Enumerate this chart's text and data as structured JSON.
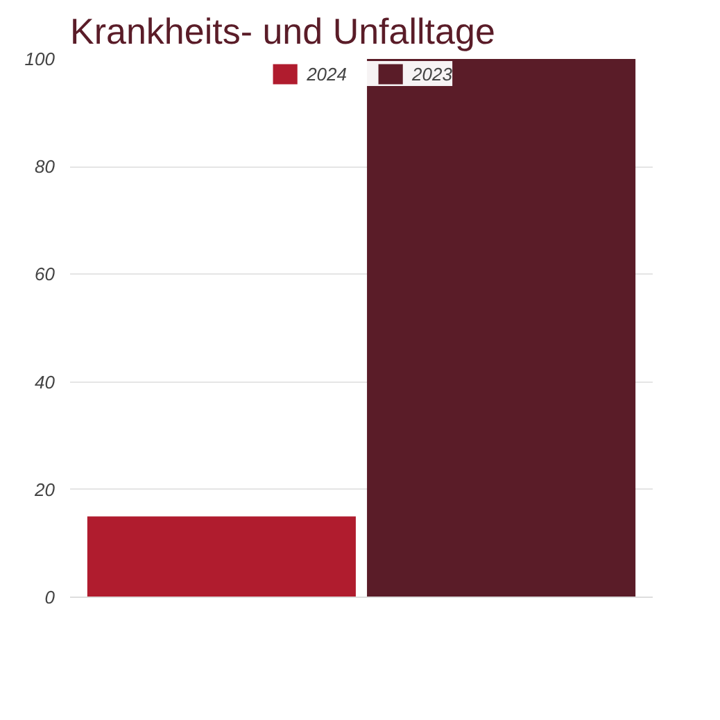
{
  "chart_data": {
    "type": "bar",
    "title": "Krankheits- und Unfalltage",
    "categories": [
      null
    ],
    "series": [
      {
        "name": "2024",
        "color": "#b01c2e",
        "values": [
          15
        ]
      },
      {
        "name": "2023",
        "color": "#5a1c28",
        "values": [
          100
        ]
      }
    ],
    "ylim": [
      0,
      100
    ],
    "yticks": [
      0,
      20,
      40,
      60,
      80,
      100
    ],
    "grid": "y",
    "legend": "top",
    "tick_labels": "y"
  }
}
